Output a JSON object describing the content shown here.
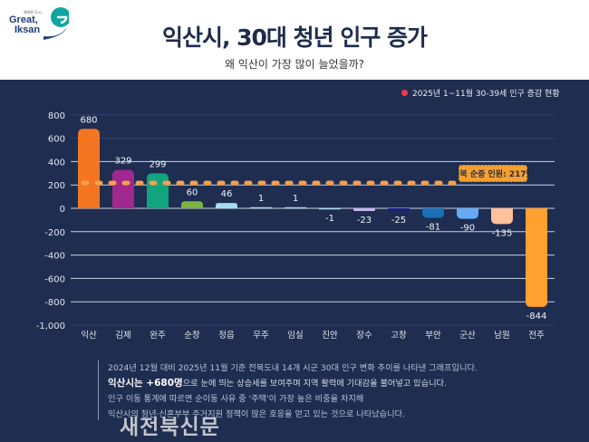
{
  "header": {
    "logo": {
      "small": "위대한 도시",
      "line1": "Great,",
      "line2": "Iksan"
    },
    "title": "익산시, 30대 청년 인구 증가",
    "subtitle": "왜 익산이 가장 많이 늘었을까?"
  },
  "legend": {
    "label": "2025년 1~11월 30-39세 인구 증감 현황",
    "color": "#ef3b45"
  },
  "chart_data": {
    "type": "bar",
    "categories": [
      "익산",
      "김제",
      "완주",
      "순창",
      "정읍",
      "무주",
      "임실",
      "진안",
      "장수",
      "고창",
      "부안",
      "군산",
      "남원",
      "전주"
    ],
    "values": [
      680,
      329,
      299,
      60,
      46,
      1,
      1,
      -1,
      -23,
      -25,
      -81,
      -90,
      -135,
      -844
    ],
    "colors": [
      "#f47521",
      "#a0288f",
      "#10a57f",
      "#7cb342",
      "#a5dbf5",
      "#a5dbf5",
      "#a5dbf5",
      "#a5dbf5",
      "#c5b6f0",
      "#1a237e",
      "#1a6fb8",
      "#64aaf5",
      "#ffc09a",
      "#ffa030"
    ],
    "yticks": [
      800,
      600,
      400,
      200,
      0,
      -200,
      -400,
      -600,
      -800,
      -1000
    ],
    "ytick_labels": [
      "800",
      "600",
      "400",
      "200",
      "0",
      "-200",
      "-400",
      "-600",
      "-800",
      "-1,000"
    ],
    "ylim": [
      -1000,
      800
    ],
    "grid": true,
    "reference_line": {
      "value": 217,
      "label": "전북 순증 인원: 217명",
      "color": "#f5a04a"
    }
  },
  "notes": {
    "line1": "2024년 12월 대비 2025년 11월 기준 전북도내 14개 시군 30대 인구 변화 추이를 나타낸 그래프입니다.",
    "line2_highlight": "익산시는 +680명",
    "line2_rest": "으로 눈에 띄는 상승세를 보여주며 지역 활력에 기대감을 불어넣고 있습니다.",
    "line3": "인구 이동 통계에 따르면 순이동 사유 중 '주택'이 가장 높은 비중을 차지해",
    "line4": "익산시의 청년·신혼부부 주거지원 정책이 많은 호응을 얻고 있는 것으로 나타났습니다."
  },
  "watermark": "새전북신문"
}
